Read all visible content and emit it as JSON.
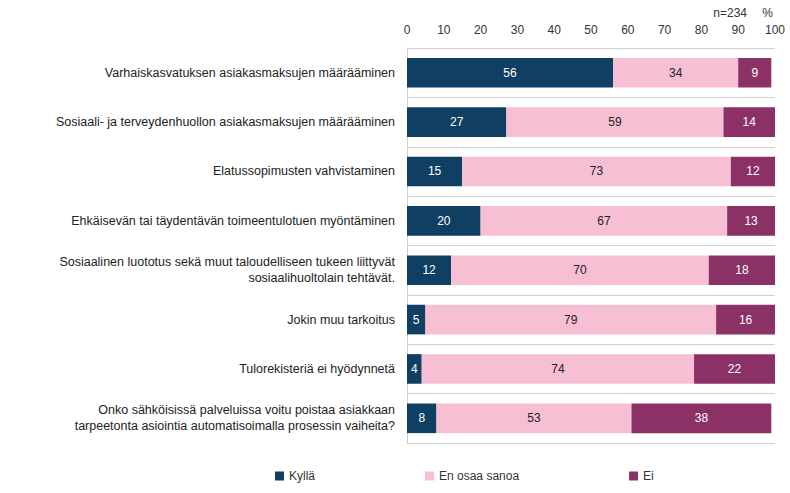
{
  "chart_data": {
    "type": "bar",
    "orientation": "horizontal",
    "stacked": true,
    "data_labels": true,
    "grid": true,
    "legend": "bottom",
    "subtitle": "n=234",
    "x_label": "%",
    "categories": [
      "Varhaiskasvatuksen asiakasmaksujen määrääminen",
      "Sosiaali- ja terveydenhuollon asiakasmaksujen määrääminen",
      "Elatussopimusten vahvistaminen",
      "Ehkäisevän tai täydentävän toimeentulotuen myöntäminen",
      "Sosiaalinen luototus sekä muut taloudelliseen tukeen liittyvät\nsosiaalihuoltolain tehtävät.",
      "Jokin muu tarkoitus",
      "Tulorekisteriä ei hyödynnetä",
      "Onko sähköisissä palveluissa voitu poistaa asiakkaan\ntarpeetonta asiointia automatisoimalla prosessin vaiheita?"
    ],
    "xlim": [
      0,
      100
    ],
    "xticks": [
      0,
      10,
      20,
      30,
      40,
      50,
      60,
      70,
      80,
      90,
      100
    ],
    "series": [
      {
        "name": "Kyllä",
        "color": "#0f3f63",
        "values": [
          56,
          27,
          15,
          20,
          12,
          5,
          4,
          8
        ]
      },
      {
        "name": "En osaa sanoa",
        "color": "#f7bfd4",
        "values": [
          34,
          59,
          73,
          67,
          70,
          79,
          74,
          53
        ]
      },
      {
        "name": "Ei",
        "color": "#8c3165",
        "values": [
          9,
          14,
          12,
          13,
          18,
          16,
          22,
          38
        ]
      }
    ]
  }
}
